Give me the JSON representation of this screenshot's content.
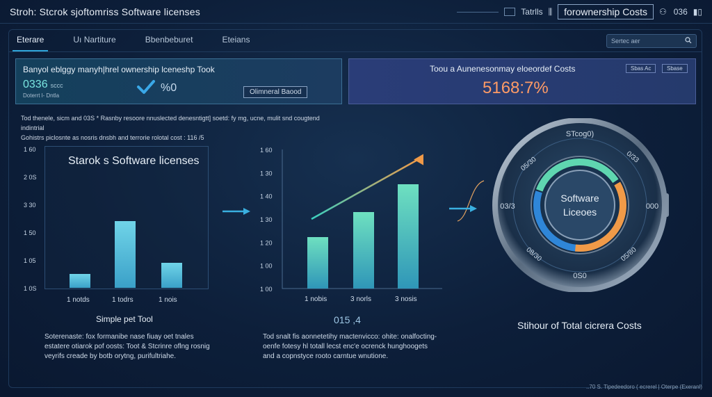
{
  "app": {
    "title": "Stroh: Stcrok sjoftomriss Software licenses"
  },
  "top_right": {
    "box1": "",
    "box2": "Tatrlls",
    "title": "forownership Costs",
    "text": "036"
  },
  "tabs": [
    {
      "label": "Eterare"
    },
    {
      "label": "Uı Nartiture"
    },
    {
      "label": "Bbenbeburet"
    },
    {
      "label": "Eteians"
    }
  ],
  "search": {
    "placeholder": "Sertec aer"
  },
  "card_left": {
    "title": "Banyol eblggy manyh|hrel ownership lceneshp Took",
    "value": "0336",
    "unit": "sccc",
    "sub": "Doterrt l- Dntla",
    "pct": "%0",
    "button": "Olimneral  Baood"
  },
  "card_right": {
    "title": "Toou a  Aunenesonmay eloeordef Costs",
    "value": "5168:7%",
    "btn1": "Sbas Ac",
    "btn2": "Sbase"
  },
  "description": {
    "line1": "Tod thenele, sicm and 03S * Rasnby resoore nnuslected denesntigtt] soetd: fy mg, ucne, mulit snd cougtend indintrial",
    "line2": "Gohistrs piclosnte as nosris dnsbh and terrorie rolotal cost : 116 /5"
  },
  "chart1": {
    "title": "Starok s Software licenses",
    "yticks": [
      "1 60",
      "2 0S",
      "3 30",
      "1 50",
      "1 05",
      "1 0S"
    ],
    "xlabels": [
      "1  notds",
      "1  todrs",
      "1  nois"
    ],
    "values": [
      0.1,
      0.48,
      0.18
    ],
    "caption": "Simple pet Tool",
    "note_lines": [
      "Soterenaste: fox formanibe nase fiuay oet tnales",
      "estatere otiarok pof oosts: Toot & Stcrinre oflng rosnig",
      "veyrifs creade by botb orytng, purifultriahe."
    ]
  },
  "chart2": {
    "yticks": [
      "1 60",
      "1 30",
      "1 40",
      "1 30",
      "1 20",
      "1 00",
      "1 00"
    ],
    "xlabels": [
      "1  nobis",
      "3  norls",
      "3  nosis"
    ],
    "values": [
      0.37,
      0.55,
      0.75
    ],
    "caption": "015 ,4",
    "note_lines": [
      "Tod snalt fis aonnetetihy mactenvicco: ohite: onalfocting-",
      "oenfe fotesy hl totall lecst enc'e ocrenck hunghoogets",
      "and a copnstyce rooto carntue wnutione."
    ]
  },
  "gauge": {
    "center_line1": "Software",
    "center_line2": "Liceoes",
    "ring_top": "STcog0)",
    "ring_left": "03/3",
    "ring_right": "000",
    "ring_bottom": "0S0",
    "ring_upper_left": "05/30",
    "ring_upper_right": "0/33",
    "ring_lower_left": "08/30",
    "ring_lower_right": "05/80",
    "caption": "Stihour of Total cicrera Costs",
    "arc_blue_fraction": 0.5,
    "arc_orange_fraction": 0.35
  },
  "footer": {
    "text": "..70 S.  Tipedeedoro ( ecrerel  |  Oterpe  (Exeranl)"
  },
  "colors": {
    "accent": "#2fa4d8",
    "orange": "#ff9b66",
    "teal": "#5fd6b0"
  }
}
